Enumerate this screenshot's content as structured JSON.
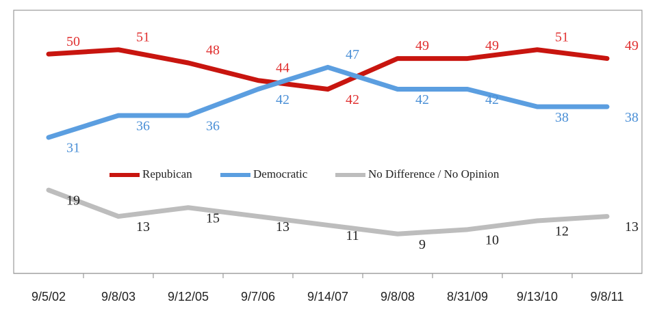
{
  "chart_data": {
    "type": "line",
    "categories": [
      "9/5/02",
      "9/8/03",
      "9/12/05",
      "9/7/06",
      "9/14/07",
      "9/8/08",
      "8/31/09",
      "9/13/10",
      "9/8/11"
    ],
    "series": [
      {
        "name": "Repubican",
        "color": "#c8150f",
        "label_color": "#e03030",
        "values": [
          50,
          51,
          48,
          44,
          42,
          49,
          49,
          51,
          49
        ]
      },
      {
        "name": "Democratic",
        "color": "#5b9ee0",
        "label_color": "#4a8fd6",
        "values": [
          31,
          36,
          36,
          42,
          47,
          42,
          42,
          38,
          38
        ]
      },
      {
        "name": "No Difference / No Opinion",
        "color": "#bdbdbd",
        "label_color": "#222222",
        "values": [
          19,
          13,
          15,
          13,
          11,
          9,
          10,
          12,
          13
        ]
      }
    ],
    "ylim": [
      0,
      60
    ]
  }
}
